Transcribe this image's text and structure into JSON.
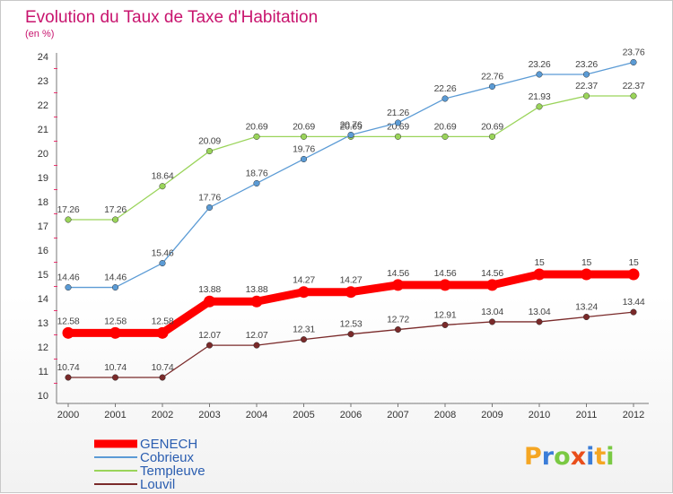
{
  "chart_data": {
    "type": "line",
    "title": "Evolution du Taux de Taxe d'Habitation",
    "subtitle": "(en %)",
    "x": [
      "2000",
      "2001",
      "2002",
      "2003",
      "2004",
      "2005",
      "2006",
      "2007",
      "2008",
      "2009",
      "2010",
      "2011",
      "2012"
    ],
    "ylim": [
      10,
      24
    ],
    "yticks": [
      "10",
      "11",
      "12",
      "13",
      "14",
      "15",
      "16",
      "17",
      "18",
      "19",
      "20",
      "21",
      "22",
      "23",
      "24"
    ],
    "grid": false,
    "legend_position": "bottom-left",
    "series": [
      {
        "name": "GENECH",
        "color": "#ff0000",
        "values": [
          12.58,
          12.58,
          12.58,
          13.88,
          13.88,
          14.27,
          14.27,
          14.56,
          14.56,
          14.56,
          15,
          15,
          15
        ],
        "labels": [
          "12.58",
          "12.58",
          "12.58",
          "13.88",
          "13.88",
          "14.27",
          "14.27",
          "14.56",
          "14.56",
          "14.56",
          "15",
          "15",
          "15"
        ]
      },
      {
        "name": "Cobrieux",
        "color": "#5b9bd5",
        "values": [
          14.46,
          14.46,
          15.46,
          17.76,
          18.76,
          19.76,
          20.76,
          21.26,
          22.26,
          22.76,
          23.26,
          23.26,
          23.76
        ],
        "labels": [
          "14.46",
          "14.46",
          "15.46",
          "17.76",
          "18.76",
          "19.76",
          "20.76",
          "21.26",
          "22.26",
          "22.76",
          "23.26",
          "23.26",
          "23.76"
        ]
      },
      {
        "name": "Templeuve",
        "color": "#9ad45a",
        "values": [
          17.26,
          17.26,
          18.64,
          20.09,
          20.69,
          20.69,
          20.69,
          20.69,
          20.69,
          20.69,
          21.93,
          22.37,
          22.37
        ],
        "labels": [
          "17.26",
          "17.26",
          "18.64",
          "20.09",
          "20.69",
          "20.69",
          "20.69",
          "20.69",
          "20.69",
          "20.69",
          "21.93",
          "22.37",
          "22.37"
        ]
      },
      {
        "name": "Louvil",
        "color": "#7a2a2a",
        "values": [
          10.74,
          10.74,
          10.74,
          12.07,
          12.07,
          12.31,
          12.53,
          12.72,
          12.91,
          13.04,
          13.04,
          13.24,
          13.44
        ],
        "labels": [
          "10.74",
          "10.74",
          "10.74",
          "12.07",
          "12.07",
          "12.31",
          "12.53",
          "12.72",
          "12.91",
          "13.04",
          "13.04",
          "13.24",
          "13.44"
        ]
      }
    ]
  },
  "logo": {
    "text": "Proxiti",
    "colors": [
      "#f5a623",
      "#3b7dd8",
      "#7ac943",
      "#e94e1b",
      "#3b7dd8",
      "#f5a623",
      "#7ac943"
    ]
  }
}
